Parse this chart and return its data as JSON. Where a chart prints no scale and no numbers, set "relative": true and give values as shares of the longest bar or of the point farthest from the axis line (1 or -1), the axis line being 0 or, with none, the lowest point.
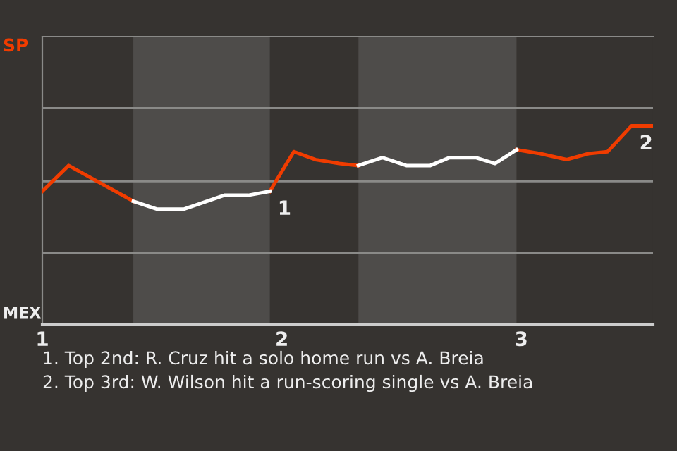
{
  "chart_data": {
    "type": "line",
    "relative": true,
    "x": [
      1.0,
      1.11,
      1.38,
      1.48,
      1.59,
      1.76,
      1.86,
      1.95,
      2.05,
      2.14,
      2.24,
      2.32,
      2.42,
      2.52,
      2.62,
      2.7,
      2.81,
      2.89,
      2.98,
      3.08,
      3.19,
      3.28,
      3.36,
      3.46,
      3.55
    ],
    "series": [
      {
        "color": "#f03c00",
        "values": [
          0.67,
          0.8,
          0.62,
          null,
          null,
          null,
          null,
          0.67,
          0.87,
          0.83,
          0.81,
          0.8,
          null,
          null,
          null,
          null,
          null,
          null,
          0.88,
          0.86,
          0.83,
          0.86,
          0.87,
          1.0,
          1.0
        ]
      },
      {
        "color": "#ffffff",
        "values": [
          null,
          null,
          0.62,
          0.58,
          0.58,
          0.65,
          0.65,
          0.67,
          null,
          null,
          null,
          0.8,
          0.84,
          0.8,
          0.8,
          0.84,
          0.84,
          0.81,
          0.88,
          null,
          null,
          null,
          null,
          null,
          null
        ]
      }
    ],
    "xlim": [
      1,
      3.55
    ],
    "xticks": [
      1,
      2,
      3
    ],
    "ref_lines": [
      {
        "axis": "y",
        "value": 0.36,
        "color": "#8a8a88"
      },
      {
        "axis": "y",
        "value": 0.72,
        "color": "#8a8a88"
      },
      {
        "axis": "y",
        "value": 1.09,
        "color": "#8a8a88"
      }
    ],
    "marker": "none",
    "line_style": "solid",
    "bands": [
      {
        "axis": "x",
        "from": 1.38,
        "to": 1.95,
        "color": "#4e4c4a"
      },
      {
        "axis": "x",
        "from": 2.32,
        "to": 2.98,
        "color": "#4e4c4a"
      }
    ],
    "annotations": [
      "SP",
      "MEX",
      {
        "text": "1",
        "x": 1.95,
        "y": 0.67
      },
      {
        "text": "2",
        "x": 3.46,
        "y": 1.0
      },
      "1. Top 2nd: R. Cruz hit a solo home run vs A. Breia",
      "2. Top 3rd: W. Wilson hit a run-scoring single vs A. Breia"
    ]
  }
}
